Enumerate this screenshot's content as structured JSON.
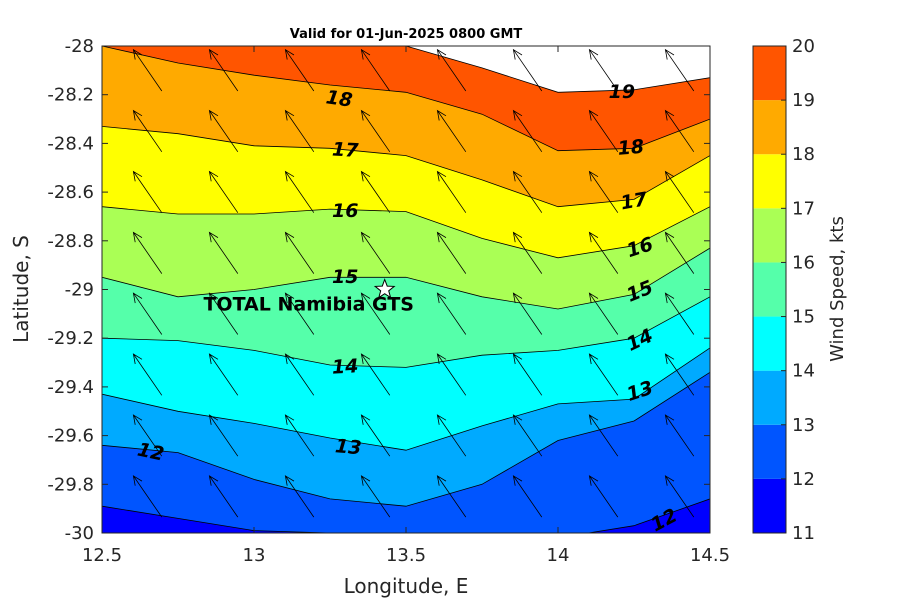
{
  "chart_data": {
    "type": "contour",
    "title": "Valid for 01-Jun-2025 0800 GMT",
    "xlabel": "Longitude, E",
    "ylabel": "Latitude, S",
    "colorbar_label": "Wind Speed, kts",
    "xlim": [
      12.5,
      14.5
    ],
    "ylim": [
      -30,
      -28
    ],
    "x_ticks": [
      "12.5",
      "13",
      "13.5",
      "14",
      "14.5"
    ],
    "y_ticks": [
      "-28",
      "-28.2",
      "-28.4",
      "-28.6",
      "-28.8",
      "-29",
      "-29.2",
      "-29.4",
      "-29.6",
      "-29.8",
      "-30"
    ],
    "colorbar": {
      "range": [
        11,
        20
      ],
      "ticks": [
        "11",
        "12",
        "13",
        "14",
        "15",
        "16",
        "17",
        "18",
        "19",
        "20"
      ],
      "colors": [
        "#0000ff",
        "#0055ff",
        "#00aaff",
        "#00ffff",
        "#55ffaa",
        "#aaff55",
        "#ffff00",
        "#ffaa00",
        "#ff5500"
      ]
    },
    "contours": [
      {
        "level": 12,
        "x": [
          12.5,
          12.75,
          13.0,
          13.25,
          13.5,
          13.75,
          14.0,
          14.25,
          14.5
        ],
        "y": [
          -29.89,
          -29.94,
          -29.99,
          -30.0,
          -30.01,
          -30.02,
          -30.02,
          -29.97,
          -29.86
        ]
      },
      {
        "level": 13,
        "x": [
          12.5,
          12.75,
          13.0,
          13.25,
          13.5,
          13.75,
          14.0,
          14.25,
          14.5
        ],
        "y": [
          -29.64,
          -29.67,
          -29.78,
          -29.86,
          -29.89,
          -29.8,
          -29.62,
          -29.54,
          -29.34
        ]
      },
      {
        "level": 14,
        "x": [
          12.5,
          12.75,
          13.0,
          13.25,
          13.5,
          13.75,
          14.0,
          14.25,
          14.5
        ],
        "y": [
          -29.43,
          -29.5,
          -29.55,
          -29.61,
          -29.66,
          -29.56,
          -29.47,
          -29.45,
          -29.24
        ]
      },
      {
        "level": 15,
        "x": [
          12.5,
          12.75,
          13.0,
          13.25,
          13.5,
          13.75,
          14.0,
          14.25,
          14.5
        ],
        "y": [
          -29.2,
          -29.21,
          -29.25,
          -29.31,
          -29.32,
          -29.27,
          -29.25,
          -29.2,
          -29.03
        ]
      },
      {
        "level": 16,
        "x": [
          12.5,
          12.75,
          13.0,
          13.25,
          13.5,
          13.75,
          14.0,
          14.25,
          14.5
        ],
        "y": [
          -28.95,
          -29.03,
          -29.0,
          -28.95,
          -28.95,
          -29.03,
          -29.08,
          -29.02,
          -28.83
        ]
      },
      {
        "level": 17,
        "x": [
          12.5,
          12.75,
          13.0,
          13.25,
          13.5,
          13.75,
          14.0,
          14.25,
          14.5
        ],
        "y": [
          -28.66,
          -28.69,
          -28.69,
          -28.67,
          -28.68,
          -28.79,
          -28.87,
          -28.82,
          -28.66
        ]
      },
      {
        "level": 18,
        "x": [
          12.5,
          12.75,
          13.0,
          13.25,
          13.5,
          13.75,
          14.0,
          14.25,
          14.5
        ],
        "y": [
          -28.33,
          -28.36,
          -28.41,
          -28.42,
          -28.45,
          -28.55,
          -28.66,
          -28.63,
          -28.45
        ]
      },
      {
        "level": 19,
        "x": [
          12.5,
          12.75,
          13.0,
          13.25,
          13.5,
          13.75,
          14.0,
          14.25,
          14.5
        ],
        "y": [
          -28.0,
          -28.07,
          -28.12,
          -28.16,
          -28.19,
          -28.28,
          -28.43,
          -28.42,
          -28.3
        ]
      },
      {
        "level": 20,
        "x": [
          12.5,
          12.75,
          13.0,
          13.25,
          13.5,
          13.75,
          14.0,
          14.25,
          14.5
        ],
        "y": [
          -28.0,
          -28.0,
          -28.0,
          -28.0,
          -28.0,
          -28.09,
          -28.19,
          -28.18,
          -28.13
        ]
      }
    ],
    "contour_labels": [
      {
        "text": "12",
        "x": 12.66,
        "y": -29.67,
        "angle": 12
      },
      {
        "text": "13",
        "x": 13.31,
        "y": -29.65,
        "angle": 5
      },
      {
        "text": "14",
        "x": 13.3,
        "y": -29.32,
        "angle": -3
      },
      {
        "text": "15",
        "x": 13.3,
        "y": -28.95,
        "angle": 0
      },
      {
        "text": "16",
        "x": 13.3,
        "y": -28.68,
        "angle": 0
      },
      {
        "text": "17",
        "x": 13.3,
        "y": -28.43,
        "angle": 3
      },
      {
        "text": "18",
        "x": 13.28,
        "y": -28.22,
        "angle": 8
      },
      {
        "text": "19",
        "x": 14.21,
        "y": -28.19,
        "angle": 0
      },
      {
        "text": "18",
        "x": 14.24,
        "y": -28.42,
        "angle": -5
      },
      {
        "text": "17",
        "x": 14.25,
        "y": -28.64,
        "angle": -10
      },
      {
        "text": "16",
        "x": 14.27,
        "y": -28.83,
        "angle": -18
      },
      {
        "text": "15",
        "x": 14.27,
        "y": -29.01,
        "angle": -22
      },
      {
        "text": "14",
        "x": 14.27,
        "y": -29.21,
        "angle": -25
      },
      {
        "text": "13",
        "x": 14.27,
        "y": -29.42,
        "angle": -18
      },
      {
        "text": "12",
        "x": 14.35,
        "y": -29.95,
        "angle": -28
      }
    ],
    "wind_vectors": {
      "lon": [
        12.65,
        12.9,
        13.15,
        13.4,
        13.65,
        13.9,
        14.15,
        14.4
      ],
      "lat": [
        -28.1,
        -28.35,
        -28.6,
        -28.85,
        -29.1,
        -29.35,
        -29.6,
        -29.85
      ],
      "u": -0.55,
      "v": 0.8,
      "description": "uniform wind arrows pointing toward north-west"
    },
    "marker": {
      "label": "TOTAL Namibia GTS",
      "lon": 13.43,
      "lat": -29.0
    }
  }
}
